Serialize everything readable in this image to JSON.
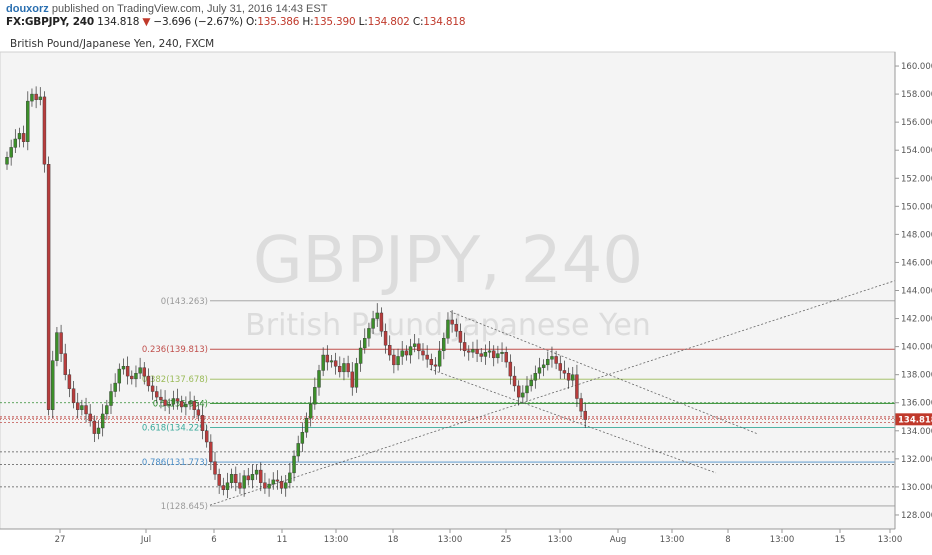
{
  "header": {
    "user": "douxorz",
    "published": "published on TradingView.com, July 31, 2016 14:43 EST",
    "symbol": "FX:GBPJPY, 240",
    "last": "134.818",
    "change": "−3.696 (−2.67%)",
    "o_label": "O:",
    "o_value": "135.386",
    "h_label": "H:",
    "h_value": "135.390",
    "l_label": "L:",
    "l_value": "134.802",
    "c_label": "C:",
    "c_value": "134.818"
  },
  "colors": {
    "up": "#3c8e2a",
    "down": "#b73c3c",
    "price_tag": "#c0392b"
  },
  "chart_data": {
    "type": "candlestick",
    "title": "British Pound/Japanese Yen, 240, FXCM",
    "watermark_symbol": "GBPJPY, 240",
    "watermark_name": "British Pound/Japanese Yen",
    "ylim": [
      127,
      161
    ],
    "y_ticks": [
      "160.000",
      "158.000",
      "156.000",
      "154.000",
      "152.000",
      "150.000",
      "148.000",
      "146.000",
      "144.000",
      "142.000",
      "140.000",
      "138.000",
      "136.000",
      "134.000",
      "132.000",
      "130.000",
      "128.000"
    ],
    "x_ticks": [
      "27",
      "Jul",
      "6",
      "11",
      "13:00",
      "18",
      "13:00",
      "25",
      "13:00",
      "Aug",
      "13:00",
      "8",
      "13:00",
      "15",
      "13:00"
    ],
    "last_price_label": "134.818",
    "fib_levels": [
      {
        "ratio": "0",
        "price": "143.263",
        "value": 143.263,
        "color": "#9a9a9a"
      },
      {
        "ratio": "0.236",
        "price": "139.813",
        "value": 139.813,
        "color": "#c0504d"
      },
      {
        "ratio": "0.382",
        "price": "137.678",
        "value": 137.678,
        "color": "#9bbb59"
      },
      {
        "ratio": "0.5",
        "price": "135.954",
        "value": 135.954,
        "color": "#2e8b2e"
      },
      {
        "ratio": "0.618",
        "price": "134.229",
        "value": 134.229,
        "color": "#3aa89a"
      },
      {
        "ratio": "0.786",
        "price": "131.773",
        "value": 131.773,
        "color": "#4a8ec8"
      },
      {
        "ratio": "1",
        "price": "128.645",
        "value": 128.645,
        "color": "#9a9a9a"
      }
    ],
    "horizontal_levels": [
      136.0,
      135.0,
      134.9,
      134.6,
      132.5,
      131.6,
      130.0
    ],
    "trend_lines": [
      {
        "from": [
          "Jul 6",
          128.7
        ],
        "to": [
          "Aug 15",
          144.7
        ]
      },
      {
        "from": [
          "Jul 18",
          142.5
        ],
        "to": [
          "Aug 8",
          133.8
        ]
      },
      {
        "from": [
          "Jul 18",
          138.4
        ],
        "to": [
          "Aug 8",
          131.0
        ]
      }
    ],
    "candles_close": [
      153.5,
      154.2,
      154.8,
      155.2,
      154.6,
      157.5,
      158.0,
      157.6,
      157.8,
      153.0,
      135.5,
      139.0,
      141.0,
      139.5,
      138.0,
      137.0,
      136.0,
      135.5,
      135.8,
      135.2,
      134.7,
      133.8,
      134.2,
      135.2,
      135.8,
      136.8,
      137.4,
      138.4,
      138.6,
      137.9,
      137.7,
      138.1,
      138.5,
      137.9,
      137.2,
      136.8,
      136.4,
      136.2,
      135.8,
      135.9,
      136.3,
      136.1,
      135.7,
      135.9,
      136.1,
      135.5,
      135.1,
      134.0,
      133.2,
      131.8,
      130.9,
      130.1,
      129.8,
      130.3,
      130.9,
      130.3,
      129.9,
      130.8,
      130.5,
      130.9,
      131.2,
      130.3,
      129.9,
      130.2,
      130.5,
      130.4,
      129.9,
      130.3,
      131.0,
      132.2,
      133.1,
      133.9,
      134.9,
      135.9,
      137.1,
      138.3,
      139.4,
      138.9,
      139.0,
      138.6,
      138.2,
      138.8,
      138.2,
      137.1,
      138.8,
      139.9,
      140.6,
      141.3,
      142.0,
      142.4,
      141.1,
      140.1,
      139.4,
      138.7,
      139.3,
      139.7,
      139.4,
      140.0,
      140.2,
      139.7,
      139.4,
      139.1,
      138.7,
      138.6,
      139.7,
      140.6,
      141.9,
      141.6,
      141.1,
      140.3,
      139.7,
      139.6,
      139.8,
      139.5,
      139.3,
      139.6,
      139.7,
      139.2,
      139.5,
      139.6,
      138.9,
      137.9,
      137.2,
      136.4,
      136.7,
      137.2,
      137.6,
      138.1,
      138.5,
      138.7,
      139.1,
      139.3,
      138.8,
      138.3,
      138.1,
      137.6,
      138.0,
      136.3,
      135.4,
      134.8
    ]
  }
}
